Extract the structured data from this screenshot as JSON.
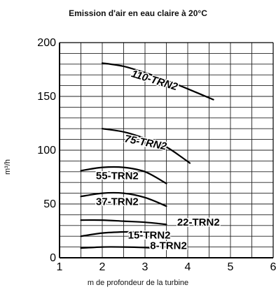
{
  "chart_data": {
    "type": "line",
    "title": "Emission d'air en eau claire à 20°C",
    "xlabel": "m de profondeur de la turbine",
    "ylabel": "m³/h",
    "xlim": [
      1,
      6
    ],
    "ylim": [
      0,
      200
    ],
    "xticks": [
      1,
      2,
      3,
      4,
      5,
      6
    ],
    "yticks": [
      0,
      50,
      100,
      150,
      200
    ],
    "grid": true,
    "series": [
      {
        "name": "110-TRN2",
        "points": [
          [
            2.0,
            181
          ],
          [
            2.5,
            178
          ],
          [
            3.0,
            172
          ],
          [
            3.5,
            165
          ],
          [
            4.0,
            157
          ],
          [
            4.6,
            147
          ]
        ]
      },
      {
        "name": "75-TRN2",
        "points": [
          [
            2.0,
            120
          ],
          [
            2.5,
            117
          ],
          [
            3.0,
            111
          ],
          [
            3.5,
            103
          ],
          [
            4.05,
            88
          ]
        ]
      },
      {
        "name": "55-TRN2",
        "points": [
          [
            1.5,
            81
          ],
          [
            2.0,
            84
          ],
          [
            2.5,
            84
          ],
          [
            3.0,
            80
          ],
          [
            3.5,
            69
          ]
        ]
      },
      {
        "name": "37-TRN2",
        "points": [
          [
            1.5,
            57
          ],
          [
            2.0,
            60
          ],
          [
            2.5,
            60
          ],
          [
            3.0,
            56
          ],
          [
            3.5,
            48
          ]
        ]
      },
      {
        "name": "22-TRN2",
        "points": [
          [
            1.5,
            35
          ],
          [
            2.0,
            35
          ],
          [
            2.5,
            34
          ],
          [
            3.0,
            33
          ],
          [
            3.5,
            31
          ]
        ]
      },
      {
        "name": "15-TRN2",
        "points": [
          [
            1.5,
            20
          ],
          [
            2.0,
            23
          ],
          [
            2.5,
            24
          ],
          [
            3.0,
            24
          ],
          [
            3.2,
            23
          ]
        ]
      },
      {
        "name": "8-TRN2",
        "points": [
          [
            1.5,
            9
          ],
          [
            2.0,
            10
          ],
          [
            2.5,
            10
          ],
          [
            3.0,
            9.5
          ],
          [
            3.2,
            9
          ]
        ]
      }
    ]
  }
}
